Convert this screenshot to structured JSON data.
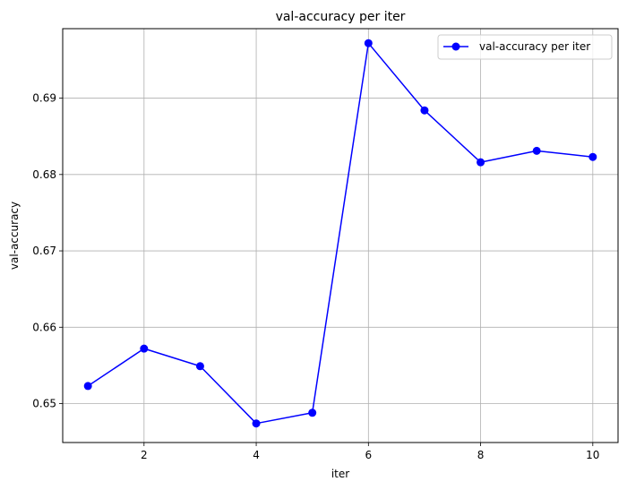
{
  "chart_data": {
    "type": "line",
    "title": "val-accuracy per iter",
    "xlabel": "iter",
    "ylabel": "val-accuracy",
    "xlim": [
      0.55,
      10.45
    ],
    "ylim": [
      0.6449,
      0.6991
    ],
    "xticks": [
      2,
      4,
      6,
      8,
      10
    ],
    "xtick_labels": [
      "2",
      "4",
      "6",
      "8",
      "10"
    ],
    "yticks": [
      0.65,
      0.66,
      0.67,
      0.68,
      0.69
    ],
    "ytick_labels": [
      "0.65",
      "0.66",
      "0.67",
      "0.68",
      "0.69"
    ],
    "grid": true,
    "legend_position": "top-right",
    "series": [
      {
        "name": "val-accuracy per iter",
        "color": "#0000ff",
        "marker": "circle",
        "x": [
          1,
          2,
          3,
          4,
          5,
          6,
          7,
          8,
          9,
          10
        ],
        "y": [
          0.6523,
          0.6572,
          0.6549,
          0.6474,
          0.6488,
          0.6972,
          0.6884,
          0.6816,
          0.6831,
          0.6823
        ]
      }
    ]
  }
}
